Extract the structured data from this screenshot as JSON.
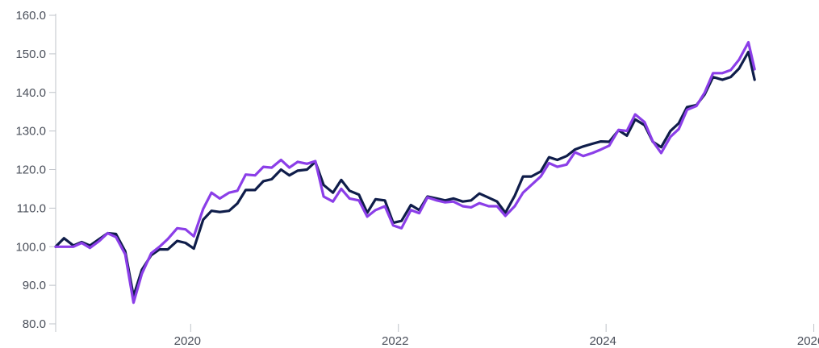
{
  "chart_data": {
    "type": "line",
    "title": "",
    "xlabel": "",
    "ylabel": "",
    "ylim": [
      80,
      160
    ],
    "yticks": [
      "80.0",
      "90.0",
      "100.0",
      "110.0",
      "120.0",
      "130.0",
      "140.0",
      "150.0",
      "160.0"
    ],
    "xlim": [
      2018.7,
      2026.05
    ],
    "xticks": [
      {
        "x": 2020,
        "label": "2020"
      },
      {
        "x": 2022,
        "label": "2022"
      },
      {
        "x": 2024,
        "label": "2024"
      },
      {
        "x": 2026,
        "label": "2026"
      }
    ],
    "grid": false,
    "legend": "none",
    "series": [
      {
        "color": "#0f1d4a",
        "points": [
          [
            2018.7,
            100.0
          ],
          [
            2018.78,
            102.2
          ],
          [
            2018.87,
            100.3
          ],
          [
            2018.95,
            101.2
          ],
          [
            2019.03,
            100.3
          ],
          [
            2019.12,
            102.0
          ],
          [
            2019.2,
            103.5
          ],
          [
            2019.28,
            103.3
          ],
          [
            2019.37,
            98.8
          ],
          [
            2019.45,
            87.2
          ],
          [
            2019.53,
            94.0
          ],
          [
            2019.62,
            97.8
          ],
          [
            2019.7,
            99.3
          ],
          [
            2019.78,
            99.3
          ],
          [
            2019.87,
            101.5
          ],
          [
            2019.95,
            101.0
          ],
          [
            2020.03,
            99.5
          ],
          [
            2020.12,
            107.0
          ],
          [
            2020.2,
            109.3
          ],
          [
            2020.28,
            109.0
          ],
          [
            2020.37,
            109.3
          ],
          [
            2020.45,
            111.2
          ],
          [
            2020.53,
            114.7
          ],
          [
            2020.62,
            114.7
          ],
          [
            2020.7,
            117.0
          ],
          [
            2020.78,
            117.5
          ],
          [
            2020.87,
            120.0
          ],
          [
            2020.95,
            118.5
          ],
          [
            2021.03,
            119.7
          ],
          [
            2021.12,
            120.0
          ],
          [
            2021.2,
            122.0
          ],
          [
            2021.28,
            116.0
          ],
          [
            2021.37,
            114.0
          ],
          [
            2021.45,
            117.3
          ],
          [
            2021.53,
            114.5
          ],
          [
            2021.62,
            113.5
          ],
          [
            2021.7,
            108.8
          ],
          [
            2021.78,
            112.3
          ],
          [
            2021.87,
            112.0
          ],
          [
            2021.95,
            106.2
          ],
          [
            2022.03,
            106.7
          ],
          [
            2022.12,
            110.8
          ],
          [
            2022.2,
            109.5
          ],
          [
            2022.28,
            113.0
          ],
          [
            2022.37,
            112.5
          ],
          [
            2022.45,
            112.0
          ],
          [
            2022.53,
            112.5
          ],
          [
            2022.62,
            111.7
          ],
          [
            2022.7,
            112.0
          ],
          [
            2022.78,
            113.8
          ],
          [
            2022.87,
            112.7
          ],
          [
            2022.95,
            111.7
          ],
          [
            2023.03,
            108.8
          ],
          [
            2023.12,
            113.2
          ],
          [
            2023.2,
            118.2
          ],
          [
            2023.28,
            118.2
          ],
          [
            2023.37,
            119.5
          ],
          [
            2023.45,
            123.2
          ],
          [
            2023.53,
            122.5
          ],
          [
            2023.62,
            123.5
          ],
          [
            2023.7,
            125.2
          ],
          [
            2023.78,
            126.0
          ],
          [
            2023.87,
            126.7
          ],
          [
            2023.95,
            127.3
          ],
          [
            2024.03,
            127.2
          ],
          [
            2024.12,
            130.2
          ],
          [
            2024.2,
            128.8
          ],
          [
            2024.28,
            133.0
          ],
          [
            2024.37,
            131.5
          ],
          [
            2024.45,
            127.2
          ],
          [
            2024.53,
            125.8
          ],
          [
            2024.62,
            130.0
          ],
          [
            2024.7,
            132.0
          ],
          [
            2024.78,
            136.2
          ],
          [
            2024.87,
            136.7
          ],
          [
            2024.95,
            139.5
          ],
          [
            2025.03,
            144.0
          ],
          [
            2025.12,
            143.3
          ],
          [
            2025.2,
            144.0
          ],
          [
            2025.28,
            146.2
          ],
          [
            2025.37,
            150.5
          ],
          [
            2025.43,
            143.3
          ]
        ]
      },
      {
        "color": "#8b3ee8",
        "points": [
          [
            2018.7,
            100.0
          ],
          [
            2018.78,
            100.0
          ],
          [
            2018.87,
            100.0
          ],
          [
            2018.95,
            101.0
          ],
          [
            2019.03,
            99.7
          ],
          [
            2019.12,
            101.5
          ],
          [
            2019.2,
            103.5
          ],
          [
            2019.28,
            102.5
          ],
          [
            2019.37,
            98.0
          ],
          [
            2019.45,
            85.5
          ],
          [
            2019.53,
            93.0
          ],
          [
            2019.62,
            98.3
          ],
          [
            2019.7,
            100.0
          ],
          [
            2019.78,
            102.0
          ],
          [
            2019.87,
            104.8
          ],
          [
            2019.95,
            104.5
          ],
          [
            2020.03,
            102.7
          ],
          [
            2020.12,
            109.8
          ],
          [
            2020.2,
            114.0
          ],
          [
            2020.28,
            112.5
          ],
          [
            2020.37,
            114.0
          ],
          [
            2020.45,
            114.5
          ],
          [
            2020.53,
            118.7
          ],
          [
            2020.62,
            118.5
          ],
          [
            2020.7,
            120.7
          ],
          [
            2020.78,
            120.5
          ],
          [
            2020.87,
            122.5
          ],
          [
            2020.95,
            120.5
          ],
          [
            2021.03,
            122.0
          ],
          [
            2021.12,
            121.5
          ],
          [
            2021.2,
            122.2
          ],
          [
            2021.28,
            113.0
          ],
          [
            2021.37,
            111.7
          ],
          [
            2021.45,
            115.0
          ],
          [
            2021.53,
            112.5
          ],
          [
            2021.62,
            112.0
          ],
          [
            2021.7,
            107.8
          ],
          [
            2021.78,
            109.5
          ],
          [
            2021.87,
            110.5
          ],
          [
            2021.95,
            105.5
          ],
          [
            2022.03,
            104.8
          ],
          [
            2022.12,
            109.5
          ],
          [
            2022.2,
            108.7
          ],
          [
            2022.28,
            112.8
          ],
          [
            2022.37,
            112.0
          ],
          [
            2022.45,
            111.5
          ],
          [
            2022.53,
            111.7
          ],
          [
            2022.62,
            110.5
          ],
          [
            2022.7,
            110.2
          ],
          [
            2022.78,
            111.3
          ],
          [
            2022.87,
            110.5
          ],
          [
            2022.95,
            110.5
          ],
          [
            2023.03,
            108.0
          ],
          [
            2023.12,
            110.5
          ],
          [
            2023.2,
            114.0
          ],
          [
            2023.28,
            116.0
          ],
          [
            2023.37,
            118.2
          ],
          [
            2023.45,
            121.7
          ],
          [
            2023.53,
            120.7
          ],
          [
            2023.62,
            121.3
          ],
          [
            2023.7,
            124.5
          ],
          [
            2023.78,
            123.5
          ],
          [
            2023.87,
            124.3
          ],
          [
            2023.95,
            125.2
          ],
          [
            2024.03,
            126.2
          ],
          [
            2024.12,
            130.3
          ],
          [
            2024.2,
            130.0
          ],
          [
            2024.28,
            134.3
          ],
          [
            2024.37,
            132.3
          ],
          [
            2024.45,
            127.3
          ],
          [
            2024.53,
            124.3
          ],
          [
            2024.62,
            128.5
          ],
          [
            2024.7,
            130.5
          ],
          [
            2024.78,
            135.5
          ],
          [
            2024.87,
            136.5
          ],
          [
            2024.95,
            140.0
          ],
          [
            2025.03,
            145.0
          ],
          [
            2025.12,
            145.0
          ],
          [
            2025.2,
            145.8
          ],
          [
            2025.28,
            148.5
          ],
          [
            2025.37,
            153.0
          ],
          [
            2025.43,
            146.0
          ]
        ]
      }
    ]
  }
}
